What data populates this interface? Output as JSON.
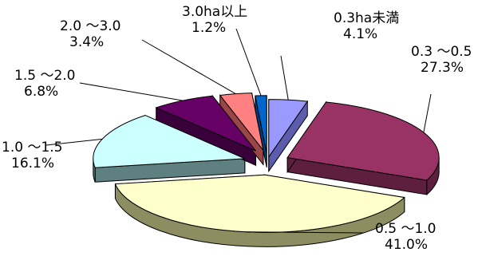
{
  "chart_data": {
    "type": "pie",
    "style": "3d-exploded",
    "slices": [
      {
        "category": "0.3ha未満",
        "value_label": "4.1%",
        "value": 4.1,
        "color": "#9999ff",
        "side_color": "#5c5cad"
      },
      {
        "category": "0.3 ～0.5",
        "value_label": "27.3%",
        "value": 27.3,
        "color": "#993366",
        "side_color": "#5e1f3f"
      },
      {
        "category": "0.5 ～1.0",
        "value_label": "41.0%",
        "value": 41.0,
        "color": "#ffffcc",
        "side_color": "#8d8d62"
      },
      {
        "category": "1.0 ～1.5",
        "value_label": "16.1%",
        "value": 16.1,
        "color": "#ccffff",
        "side_color": "#5f8080"
      },
      {
        "category": "1.5 ～2.0",
        "value_label": "6.8%",
        "value": 6.8,
        "color": "#660066",
        "side_color": "#3a003a"
      },
      {
        "category": "2.0 ～3.0",
        "value_label": "3.4%",
        "value": 3.4,
        "color": "#ff8080",
        "side_color": "#9a4646"
      },
      {
        "category": "3.0ha以上",
        "value_label": "1.2%",
        "value": 1.2,
        "color": "#0066cc",
        "side_color": "#003d7a"
      }
    ]
  }
}
